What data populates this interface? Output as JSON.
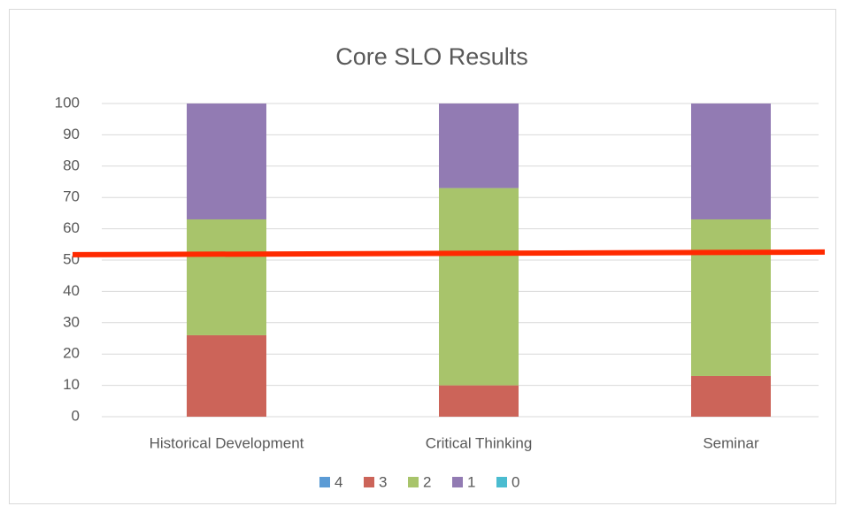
{
  "chart_data": {
    "type": "stacked_bar",
    "title": "Core SLO Results",
    "categories": [
      "Historical Development",
      "Critical Thinking",
      "Seminar"
    ],
    "series": [
      {
        "name": "4",
        "color": "#5b9bd5",
        "values": [
          0,
          0,
          0
        ]
      },
      {
        "name": "3",
        "color": "#cc6459",
        "values": [
          26,
          10,
          13
        ]
      },
      {
        "name": "2",
        "color": "#a8c46b",
        "values": [
          37,
          63,
          50
        ]
      },
      {
        "name": "1",
        "color": "#927bb3",
        "values": [
          37,
          27,
          37
        ]
      },
      {
        "name": "0",
        "color": "#4bbcd0",
        "values": [
          0,
          0,
          0
        ]
      }
    ],
    "ylim": [
      0,
      100
    ],
    "yticks": [
      0,
      10,
      20,
      30,
      40,
      50,
      60,
      70,
      80,
      90,
      100
    ],
    "grid": true,
    "legend": "bottom",
    "reference_line": {
      "value": 52,
      "color": "#ff2a00"
    }
  }
}
